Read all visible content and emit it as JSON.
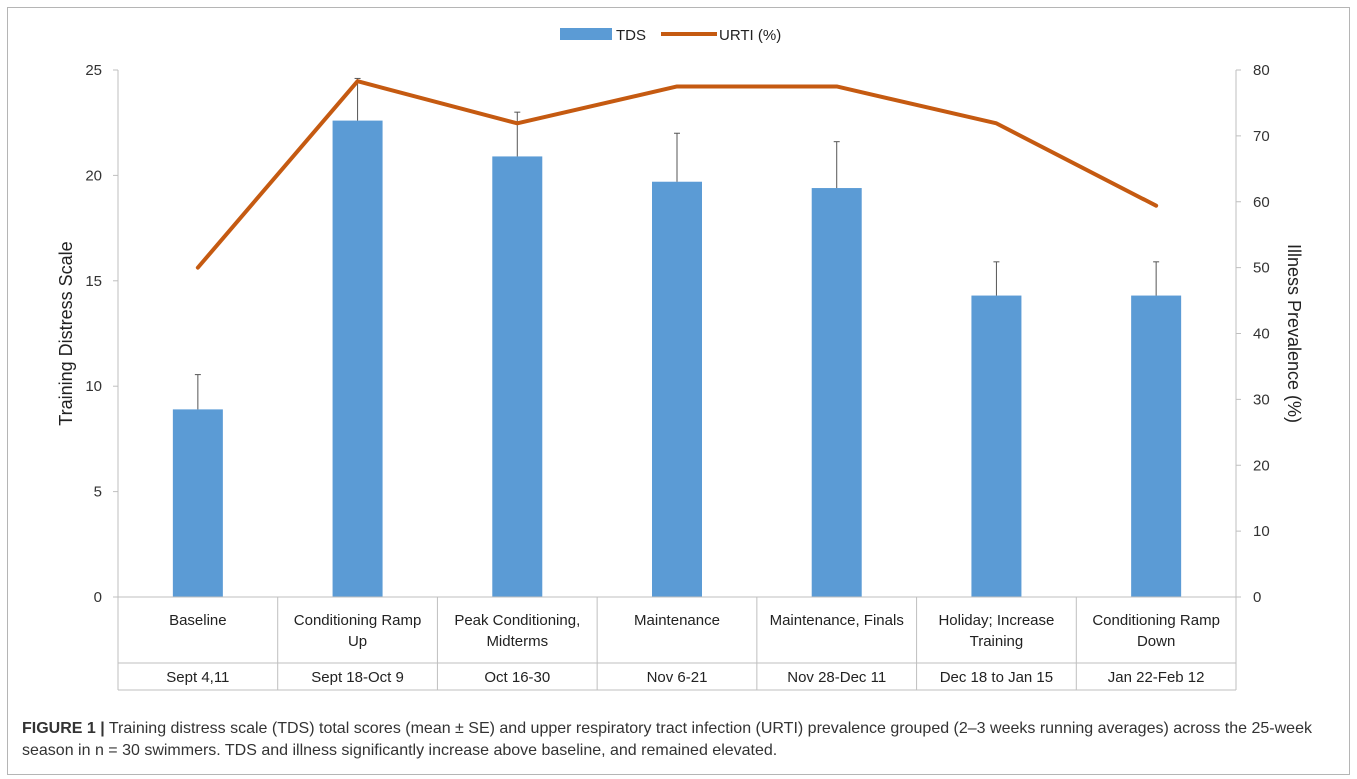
{
  "chart_data": {
    "type": "bar",
    "categories": [
      [
        "Baseline"
      ],
      [
        "Conditioning Ramp",
        "Up"
      ],
      [
        "Peak Conditioning,",
        "Midterms"
      ],
      [
        "Maintenance"
      ],
      [
        "Maintenance, Finals"
      ],
      [
        "Holiday; Increase",
        "Training"
      ],
      [
        "Conditioning Ramp",
        "Down"
      ]
    ],
    "dates": [
      "Sept 4,11",
      "Sept 18-Oct 9",
      "Oct 16-30",
      "Nov 6-21",
      "Nov 28-Dec 11",
      "Dec 18 to Jan 15",
      "Jan 22-Feb 12"
    ],
    "series": [
      {
        "name": "TDS",
        "type": "bar",
        "axis": "left",
        "values": [
          8.9,
          22.6,
          20.9,
          19.7,
          19.4,
          14.3,
          14.3
        ],
        "error": [
          1.65,
          2.0,
          2.1,
          2.3,
          2.2,
          1.6,
          1.6
        ]
      },
      {
        "name": "URTI (%)",
        "type": "line",
        "axis": "right",
        "values": [
          50.0,
          78.3,
          71.9,
          77.5,
          77.5,
          71.9,
          59.4
        ]
      }
    ],
    "ylabel": "Training Distress Scale",
    "y2label": "Illness Prevalence (%)",
    "ylim": [
      0,
      25
    ],
    "y2lim": [
      0,
      80
    ],
    "yticks": [
      "0",
      "5",
      "10",
      "15",
      "20",
      "25"
    ],
    "y2ticks": [
      "0",
      "10",
      "20",
      "30",
      "40",
      "50",
      "60",
      "70",
      "80"
    ],
    "legend_position": "top-center",
    "grid": false,
    "colors": {
      "bar": "#5b9bd5",
      "line": "#c55a11",
      "axis": "#bfbfbf",
      "error": "#555555"
    }
  },
  "caption": {
    "label": "FIGURE 1 |",
    "text": "Training distress scale (TDS) total scores (mean ± SE) and upper respiratory tract infection (URTI) prevalence grouped (2–3 weeks running averages) across the 25-week season in n = 30 swimmers. TDS and illness significantly increase above baseline, and remained elevated."
  }
}
